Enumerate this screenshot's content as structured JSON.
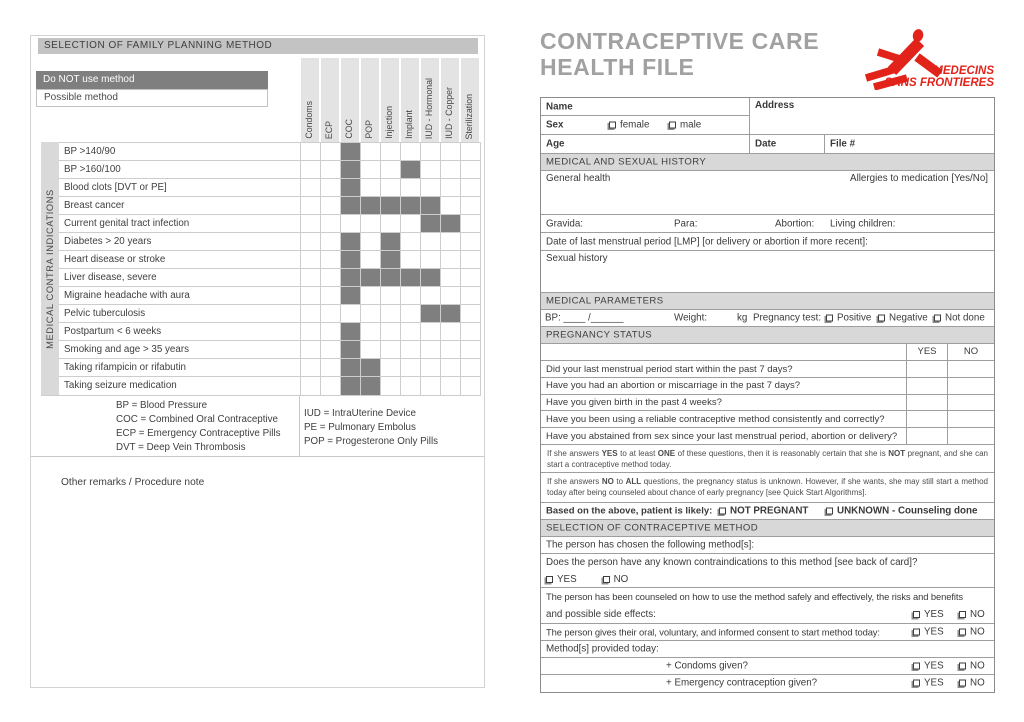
{
  "colors": {
    "do_not_use_fill": "#7f7f7f",
    "section_bar": "#d8d8d8",
    "msf_red": "#e2231a",
    "title_gray": "#a1a1a1"
  },
  "left_page": {
    "title": "SELECTION OF FAMILY PLANNING METHOD",
    "legend_do_not_use": "Do NOT use method",
    "legend_possible": "Possible method",
    "side_label": "MEDICAL CONTRA INDICATIONS",
    "columns": [
      "Condoms",
      "ECP",
      "COC",
      "POP",
      "Injection",
      "Implant",
      "IUD - Hormonal",
      "IUD - Copper",
      "Sterilization"
    ],
    "rows": [
      {
        "label": "BP >140/90",
        "do_not_use": [
          2
        ]
      },
      {
        "label": "BP >160/100",
        "do_not_use": [
          2,
          5
        ]
      },
      {
        "label": "Blood clots [DVT or PE]",
        "do_not_use": [
          2
        ]
      },
      {
        "label": "Breast cancer",
        "do_not_use": [
          2,
          3,
          4,
          5,
          6
        ]
      },
      {
        "label": "Current genital tract infection",
        "do_not_use": [
          6,
          7
        ]
      },
      {
        "label": "Diabetes > 20 years",
        "do_not_use": [
          2,
          4
        ]
      },
      {
        "label": "Heart disease or stroke",
        "do_not_use": [
          2,
          4
        ]
      },
      {
        "label": "Liver disease, severe",
        "do_not_use": [
          2,
          3,
          4,
          5,
          6
        ]
      },
      {
        "label": "Migraine headache with aura",
        "do_not_use": [
          2
        ]
      },
      {
        "label": "Pelvic tuberculosis",
        "do_not_use": [
          6,
          7
        ]
      },
      {
        "label": "Postpartum < 6 weeks",
        "do_not_use": [
          2
        ]
      },
      {
        "label": "Smoking and age > 35 years",
        "do_not_use": [
          2
        ]
      },
      {
        "label": "Taking rifampicin or rifabutin",
        "do_not_use": [
          2,
          3
        ]
      },
      {
        "label": "Taking seizure medication",
        "do_not_use": [
          2,
          3
        ]
      }
    ],
    "abbreviations_left": [
      "BP = Blood Pressure",
      "COC = Combined Oral Contraceptive",
      "ECP = Emergency Contraceptive Pills",
      "DVT = Deep Vein Thrombosis"
    ],
    "abbreviations_right": [
      "IUD = IntraUterine Device",
      "PE = Pulmonary Embolus",
      "POP = Progesterone Only Pills"
    ],
    "other_remarks": "Other remarks / Procedure note"
  },
  "right_page": {
    "title_line1": "CONTRACEPTIVE CARE",
    "title_line2": "HEALTH FILE",
    "logo_line1": "MEDECINS",
    "logo_line2": "SANS FRONTIERES",
    "id_fields": {
      "name": "Name",
      "address": "Address",
      "sex": "Sex",
      "female": "female",
      "male": "male",
      "age": "Age",
      "date": "Date",
      "file": "File #"
    },
    "history": {
      "bar": "MEDICAL AND SEXUAL HISTORY",
      "general_health": "General health",
      "allergies": "Allergies to medication [Yes/No]",
      "gravida": "Gravida:",
      "para": "Para:",
      "abortion": "Abortion:",
      "living_children": "Living children:",
      "lmp": "Date of last menstrual period [LMP] [or delivery or abortion if more recent]:",
      "sexual_history": "Sexual history"
    },
    "parameters": {
      "bar": "MEDICAL PARAMETERS",
      "bp": "BP: ____ /______",
      "weight": "Weight:",
      "kg": "kg",
      "pregnancy_test": "Pregnancy test:",
      "positive": "Positive",
      "negative": "Negative",
      "not_done": "Not done"
    },
    "pregnancy_status": {
      "bar": "PREGNANCY STATUS",
      "yes": "YES",
      "no": "NO",
      "questions": [
        "Did your last menstrual period start within the past 7 days?",
        "Have you had an abortion or miscarriage in the past 7 days?",
        "Have you given birth in the past 4 weeks?",
        "Have you been using a reliable contraceptive method consistently and correctly?",
        "Have you abstained from sex since your last menstrual period, abortion or delivery?"
      ],
      "note1_segments": [
        {
          "t": "If she answers "
        },
        {
          "t": "YES",
          "b": 1
        },
        {
          "t": " to at least "
        },
        {
          "t": "ONE",
          "b": 1
        },
        {
          "t": " of these questions, then it is reasonably certain that she is "
        },
        {
          "t": "NOT",
          "b": 1
        },
        {
          "t": " pregnant, and she can start a contraceptive method today."
        }
      ],
      "note2_segments": [
        {
          "t": "If she answers "
        },
        {
          "t": "NO",
          "b": 1
        },
        {
          "t": " to "
        },
        {
          "t": "ALL",
          "b": 1
        },
        {
          "t": " questions, the pregnancy status is unknown. However, if she wants, she may still start a method today after being counseled about chance of early pregnancy [see Quick Start Algorithms]."
        }
      ],
      "likely_label": "Based on the above, patient is likely:",
      "likely_not_pregnant": "NOT PREGNANT",
      "likely_unknown": "UNKNOWN - Counseling done"
    },
    "selection": {
      "bar": "SELECTION OF CONTRACEPTIVE METHOD",
      "chosen": "The person has chosen the following method[s]:",
      "contraindications_q": "Does the person have any known contraindications to this method [see back of card]?",
      "yes": "YES",
      "no": "NO",
      "counseled_line1": "The person has been counseled on how to use the method safely and effectively, the risks and benefits",
      "counseled_line2": "and possible side effects:",
      "consent": "The person gives their oral, voluntary, and informed consent to start method today:",
      "provided": "Method[s] provided today:",
      "condoms_q": "+ Condoms given?",
      "ec_q": "+ Emergency contraception given?"
    }
  }
}
